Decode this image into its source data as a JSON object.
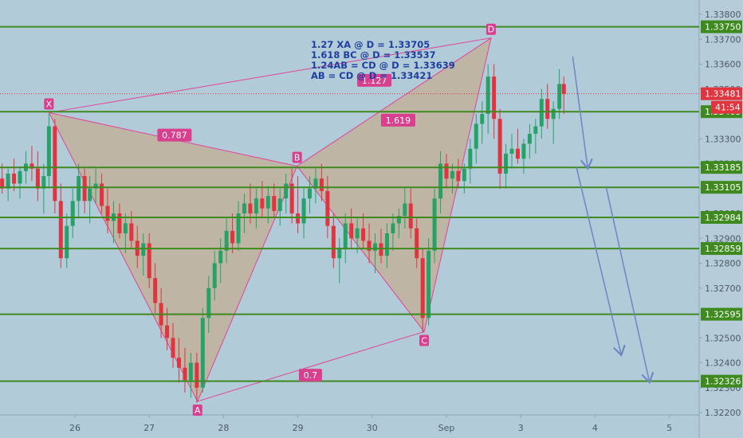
{
  "chart_data": {
    "type": "candlestick",
    "x_ticks": [
      {
        "label": "26",
        "day": 26
      },
      {
        "label": "27",
        "day": 27
      },
      {
        "label": "28",
        "day": 28
      },
      {
        "label": "29",
        "day": 29
      },
      {
        "label": "30",
        "day": 30
      },
      {
        "label": "Sep",
        "day": 31
      },
      {
        "label": "3",
        "day": 32
      },
      {
        "label": "4",
        "day": 33
      },
      {
        "label": "5",
        "day": 34
      }
    ],
    "y_ticks": [
      "1.33800",
      "1.33700",
      "1.33600",
      "1.33500",
      "1.33400",
      "1.33300",
      "1.33200",
      "1.33100",
      "1.33000",
      "1.32900",
      "1.32800",
      "1.32700",
      "1.32600",
      "1.32500",
      "1.32400",
      "1.32300",
      "1.32200"
    ],
    "ylim": [
      1.3219,
      1.3385
    ],
    "horizontal_levels": [
      1.3375,
      1.33409,
      1.33185,
      1.33105,
      1.32984,
      1.32859,
      1.32595,
      1.32326
    ],
    "level_labels": [
      "1.33750",
      "1.33409",
      "1.33185",
      "1.33105",
      "1.32984",
      "1.32859",
      "1.32595",
      "1.32326"
    ],
    "current_price": {
      "value": 1.33481,
      "label": "1.33481",
      "countdown": "41:54"
    },
    "pattern_points": [
      {
        "name": "X",
        "day": 25.65,
        "price": 1.33405
      },
      {
        "name": "A",
        "day": 27.65,
        "price": 1.32245
      },
      {
        "name": "B",
        "day": 28.99,
        "price": 1.3319
      },
      {
        "name": "C",
        "day": 30.7,
        "price": 1.32525
      },
      {
        "name": "D",
        "day": 31.6,
        "price": 1.33705
      }
    ],
    "ratio_labels": [
      {
        "text": "1.127",
        "day": 30.03,
        "price": 1.33535
      },
      {
        "text": "0.787",
        "day": 27.34,
        "price": 1.33315
      },
      {
        "text": "1.619",
        "day": 30.35,
        "price": 1.33375
      },
      {
        "text": "0.7",
        "day": 29.17,
        "price": 1.3235
      }
    ],
    "notes": [
      "1.27 XA        @ D = 1.33705",
      "1.618 BC       @ D = 1.33537",
      "1.24AB = CD @ D = 1.33639",
      "AB =   CD      @ D = 1.33421"
    ],
    "projection_arrows": [
      {
        "from_day": 32.7,
        "from_price": 1.3363,
        "to_day": 32.9,
        "to_price": 1.33185
      },
      {
        "from_day": 32.75,
        "from_price": 1.33185,
        "to_day": 33.35,
        "to_price": 1.32435
      },
      {
        "from_day": 33.15,
        "from_price": 1.33105,
        "to_day": 33.73,
        "to_price": 1.32326
      }
    ],
    "candles": [
      [
        24.05,
        1.3298,
        1.33,
        1.3292,
        1.3294
      ],
      [
        24.13,
        1.3294,
        1.3302,
        1.329,
        1.33
      ],
      [
        24.22,
        1.33,
        1.3308,
        1.3296,
        1.3305
      ],
      [
        24.3,
        1.3305,
        1.3318,
        1.3302,
        1.3315
      ],
      [
        24.38,
        1.3315,
        1.3322,
        1.3308,
        1.3312
      ],
      [
        24.46,
        1.3312,
        1.332,
        1.3305,
        1.3318
      ],
      [
        24.54,
        1.3318,
        1.3325,
        1.331,
        1.3313
      ],
      [
        24.62,
        1.3313,
        1.3319,
        1.3306,
        1.3316
      ],
      [
        24.7,
        1.3316,
        1.3322,
        1.331,
        1.3312
      ],
      [
        24.78,
        1.3312,
        1.3318,
        1.3306,
        1.3315
      ],
      [
        24.86,
        1.3315,
        1.332,
        1.3308,
        1.3311
      ],
      [
        24.94,
        1.3311,
        1.3318,
        1.3304,
        1.3314
      ],
      [
        25.02,
        1.3314,
        1.332,
        1.3308,
        1.331
      ],
      [
        25.1,
        1.331,
        1.3318,
        1.3305,
        1.3316
      ],
      [
        25.18,
        1.3316,
        1.3322,
        1.3309,
        1.3312
      ],
      [
        25.26,
        1.3312,
        1.3319,
        1.3306,
        1.3317
      ],
      [
        25.34,
        1.3317,
        1.3325,
        1.3312,
        1.332
      ],
      [
        25.42,
        1.332,
        1.3327,
        1.3313,
        1.3318
      ],
      [
        25.5,
        1.3318,
        1.3325,
        1.3305,
        1.331
      ],
      [
        25.58,
        1.331,
        1.332,
        1.33,
        1.3315
      ],
      [
        25.65,
        1.3315,
        1.334,
        1.331,
        1.3335
      ],
      [
        25.73,
        1.3335,
        1.3338,
        1.33,
        1.3305
      ],
      [
        25.81,
        1.3305,
        1.3312,
        1.3278,
        1.3282
      ],
      [
        25.89,
        1.3282,
        1.33,
        1.3278,
        1.3295
      ],
      [
        25.97,
        1.3295,
        1.331,
        1.329,
        1.3305
      ],
      [
        26.05,
        1.3305,
        1.332,
        1.3298,
        1.3315
      ],
      [
        26.13,
        1.3315,
        1.3318,
        1.33,
        1.3305
      ],
      [
        26.2,
        1.3305,
        1.3315,
        1.3296,
        1.331
      ],
      [
        26.28,
        1.331,
        1.3318,
        1.3304,
        1.3312
      ],
      [
        26.36,
        1.3312,
        1.3316,
        1.33,
        1.3303
      ],
      [
        26.44,
        1.3303,
        1.331,
        1.3292,
        1.3297
      ],
      [
        26.52,
        1.3297,
        1.3305,
        1.3288,
        1.33
      ],
      [
        26.6,
        1.33,
        1.3304,
        1.329,
        1.3292
      ],
      [
        26.68,
        1.3292,
        1.33,
        1.3284,
        1.3296
      ],
      [
        26.76,
        1.3296,
        1.3301,
        1.3286,
        1.3289
      ],
      [
        26.84,
        1.3289,
        1.3295,
        1.3278,
        1.3283
      ],
      [
        26.92,
        1.3283,
        1.3292,
        1.3275,
        1.3288
      ],
      [
        27.0,
        1.3288,
        1.3292,
        1.327,
        1.3274
      ],
      [
        27.08,
        1.3274,
        1.328,
        1.326,
        1.3264
      ],
      [
        27.16,
        1.3264,
        1.327,
        1.325,
        1.3255
      ],
      [
        27.24,
        1.3255,
        1.3262,
        1.3245,
        1.325
      ],
      [
        27.32,
        1.325,
        1.3256,
        1.3238,
        1.3242
      ],
      [
        27.4,
        1.3242,
        1.325,
        1.3232,
        1.3238
      ],
      [
        27.48,
        1.3238,
        1.3246,
        1.3228,
        1.3233
      ],
      [
        27.56,
        1.3233,
        1.3244,
        1.3226,
        1.324
      ],
      [
        27.64,
        1.324,
        1.3244,
        1.3224,
        1.323
      ],
      [
        27.72,
        1.323,
        1.3262,
        1.3228,
        1.3258
      ],
      [
        27.8,
        1.3258,
        1.3275,
        1.3252,
        1.327
      ],
      [
        27.88,
        1.327,
        1.3285,
        1.3265,
        1.328
      ],
      [
        27.96,
        1.328,
        1.329,
        1.3272,
        1.3285
      ],
      [
        28.04,
        1.3285,
        1.3298,
        1.328,
        1.3293
      ],
      [
        28.12,
        1.3293,
        1.33,
        1.3284,
        1.3288
      ],
      [
        28.2,
        1.3288,
        1.3305,
        1.3285,
        1.33
      ],
      [
        28.28,
        1.33,
        1.3308,
        1.3292,
        1.3304
      ],
      [
        28.36,
        1.3304,
        1.3312,
        1.3296,
        1.33
      ],
      [
        28.44,
        1.33,
        1.331,
        1.3294,
        1.3306
      ],
      [
        28.52,
        1.3306,
        1.3313,
        1.3298,
        1.3302
      ],
      [
        28.6,
        1.3302,
        1.3311,
        1.3296,
        1.3307
      ],
      [
        28.68,
        1.3307,
        1.3312,
        1.3298,
        1.3301
      ],
      [
        28.76,
        1.3301,
        1.331,
        1.3295,
        1.3306
      ],
      [
        28.84,
        1.3306,
        1.3316,
        1.33,
        1.3312
      ],
      [
        28.92,
        1.3312,
        1.3318,
        1.3296,
        1.33
      ],
      [
        29.0,
        1.33,
        1.3315,
        1.3292,
        1.3296
      ],
      [
        29.08,
        1.3296,
        1.331,
        1.329,
        1.3306
      ],
      [
        29.16,
        1.3306,
        1.3315,
        1.33,
        1.331
      ],
      [
        29.24,
        1.331,
        1.3318,
        1.3304,
        1.3314
      ],
      [
        29.32,
        1.3314,
        1.332,
        1.3305,
        1.3309
      ],
      [
        29.4,
        1.3309,
        1.3315,
        1.329,
        1.3295
      ],
      [
        29.48,
        1.3295,
        1.33,
        1.3278,
        1.3282
      ],
      [
        29.56,
        1.3282,
        1.329,
        1.3272,
        1.3286
      ],
      [
        29.64,
        1.3286,
        1.33,
        1.328,
        1.3296
      ],
      [
        29.72,
        1.3296,
        1.3302,
        1.3286,
        1.329
      ],
      [
        29.8,
        1.329,
        1.3298,
        1.3284,
        1.3294
      ],
      [
        29.88,
        1.3294,
        1.33,
        1.3286,
        1.3289
      ],
      [
        29.96,
        1.3289,
        1.3296,
        1.328,
        1.3285
      ],
      [
        30.04,
        1.3285,
        1.3292,
        1.3276,
        1.3288
      ],
      [
        30.12,
        1.3288,
        1.3294,
        1.328,
        1.3283
      ],
      [
        30.2,
        1.3283,
        1.3296,
        1.3278,
        1.3292
      ],
      [
        30.28,
        1.3292,
        1.33,
        1.3285,
        1.3296
      ],
      [
        30.36,
        1.3296,
        1.3302,
        1.329,
        1.3299
      ],
      [
        30.44,
        1.3299,
        1.331,
        1.3294,
        1.3304
      ],
      [
        30.52,
        1.3304,
        1.331,
        1.329,
        1.3294
      ],
      [
        30.6,
        1.3294,
        1.3298,
        1.3278,
        1.3282
      ],
      [
        30.68,
        1.3282,
        1.3286,
        1.3252,
        1.3258
      ],
      [
        30.76,
        1.3258,
        1.329,
        1.3255,
        1.3285
      ],
      [
        30.84,
        1.3285,
        1.331,
        1.328,
        1.3306
      ],
      [
        30.92,
        1.3306,
        1.3325,
        1.33,
        1.332
      ],
      [
        31.0,
        1.332,
        1.3324,
        1.331,
        1.3314
      ],
      [
        31.08,
        1.3314,
        1.332,
        1.3308,
        1.3317
      ],
      [
        31.16,
        1.3317,
        1.3322,
        1.331,
        1.3313
      ],
      [
        31.24,
        1.3313,
        1.332,
        1.3308,
        1.3318
      ],
      [
        31.32,
        1.3318,
        1.333,
        1.3312,
        1.3326
      ],
      [
        31.4,
        1.3326,
        1.334,
        1.332,
        1.3336
      ],
      [
        31.48,
        1.3336,
        1.3345,
        1.3328,
        1.334
      ],
      [
        31.56,
        1.334,
        1.336,
        1.3332,
        1.3355
      ],
      [
        31.64,
        1.3355,
        1.336,
        1.333,
        1.3338
      ],
      [
        31.72,
        1.3338,
        1.3342,
        1.331,
        1.3316
      ],
      [
        31.8,
        1.3316,
        1.3328,
        1.331,
        1.3324
      ],
      [
        31.88,
        1.3324,
        1.3332,
        1.3318,
        1.3326
      ],
      [
        31.96,
        1.3326,
        1.3334,
        1.332,
        1.3322
      ],
      [
        32.04,
        1.3322,
        1.333,
        1.3316,
        1.3328
      ],
      [
        32.12,
        1.3328,
        1.3336,
        1.3322,
        1.3332
      ],
      [
        32.2,
        1.3332,
        1.3338,
        1.3324,
        1.3335
      ],
      [
        32.28,
        1.3335,
        1.335,
        1.333,
        1.3346
      ],
      [
        32.36,
        1.3346,
        1.3352,
        1.3334,
        1.3338
      ],
      [
        32.44,
        1.3338,
        1.3345,
        1.3328,
        1.3342
      ],
      [
        32.52,
        1.3342,
        1.3358,
        1.3338,
        1.3352
      ],
      [
        32.58,
        1.3352,
        1.3355,
        1.334,
        1.3348
      ]
    ]
  }
}
